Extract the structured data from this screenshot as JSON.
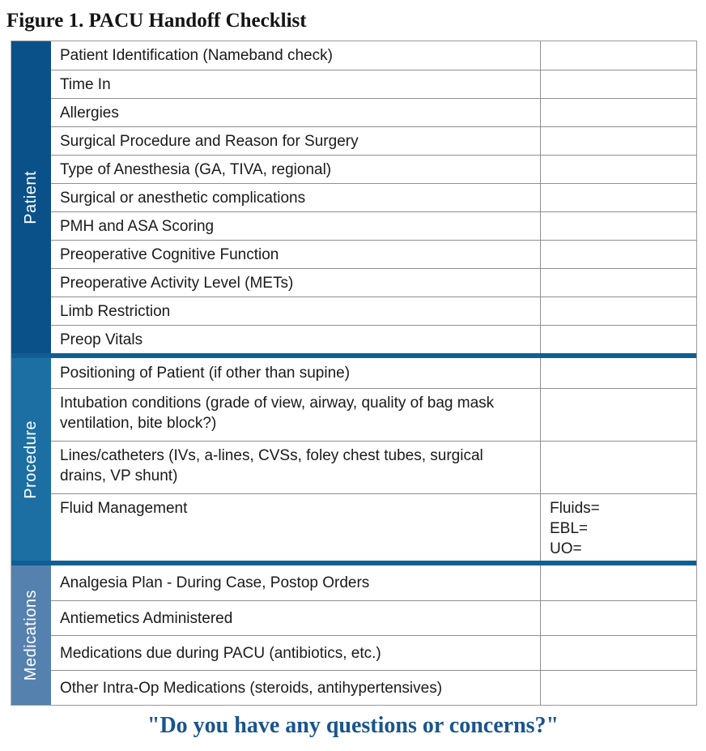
{
  "title": "Figure 1. PACU Handoff Checklist",
  "footer": {
    "question": "\"Do you have any questions or concerns?\""
  },
  "colors": {
    "patient_sidebar": "#0B5189",
    "procedure_sidebar": "#1C6FA3",
    "medications_sidebar": "#5581AE",
    "section_divider": "#115E93",
    "grid_line": "#8F8F8F",
    "quote_text": "#19558C",
    "sidebar_text": "#FFFFFF"
  },
  "table": {
    "sections": [
      {
        "label": "Patient",
        "rows": [
          {
            "item": "Patient Identification (Nameband check)"
          },
          {
            "item": "Time In"
          },
          {
            "item": "Allergies"
          },
          {
            "item": "Surgical Procedure and Reason for Surgery"
          },
          {
            "item": "Type of Anesthesia (GA, TIVA, regional)"
          },
          {
            "item": "Surgical or anesthetic complications"
          },
          {
            "item": "PMH and ASA Scoring"
          },
          {
            "item": "Preoperative Cognitive Function"
          },
          {
            "item": "Preoperative Activity Level (METs)"
          },
          {
            "item": "Limb Restriction"
          },
          {
            "item": "Preop Vitals"
          }
        ]
      },
      {
        "label": "Procedure",
        "rows": [
          {
            "item": "Positioning of Patient (if other than supine)"
          },
          {
            "item": "Intubation conditions (grade of view, airway, quality of bag mask ventilation, bite block?)"
          },
          {
            "item": "Lines/catheters (IVs, a-lines, CVSs, foley chest tubes, surgical drains, VP shunt)"
          },
          {
            "item": "Fluid Management",
            "answers": [
              "Fluids=",
              "EBL=",
              "UO="
            ]
          }
        ]
      },
      {
        "label": "Medications",
        "rows": [
          {
            "item": "Analgesia Plan - During Case, Postop Orders"
          },
          {
            "item": "Antiemetics Administered"
          },
          {
            "item": "Medications due during PACU (antibiotics, etc.)"
          },
          {
            "item": "Other Intra-Op Medications (steroids, antihypertensives)"
          }
        ]
      }
    ]
  }
}
